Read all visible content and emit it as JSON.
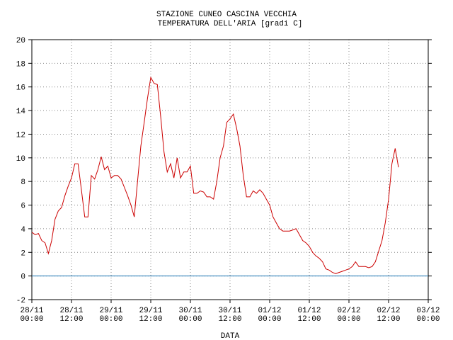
{
  "chart_data": {
    "type": "line",
    "title": "STAZIONE CUNEO CASCINA VECCHIA",
    "subtitle": "TEMPERATURA DELL'ARIA [gradi C]",
    "xlabel": "DATA",
    "x": [
      "28/11 00:00",
      "28/11 01:00",
      "28/11 02:00",
      "28/11 03:00",
      "28/11 04:00",
      "28/11 05:00",
      "28/11 06:00",
      "28/11 07:00",
      "28/11 08:00",
      "28/11 09:00",
      "28/11 10:00",
      "28/11 11:00",
      "28/11 12:00",
      "28/11 13:00",
      "28/11 14:00",
      "28/11 15:00",
      "28/11 16:00",
      "28/11 17:00",
      "28/11 18:00",
      "28/11 19:00",
      "28/11 20:00",
      "28/11 21:00",
      "28/11 22:00",
      "28/11 23:00",
      "29/11 00:00",
      "29/11 01:00",
      "29/11 02:00",
      "29/11 03:00",
      "29/11 04:00",
      "29/11 05:00",
      "29/11 06:00",
      "29/11 07:00",
      "29/11 08:00",
      "29/11 09:00",
      "29/11 10:00",
      "29/11 11:00",
      "29/11 12:00",
      "29/11 13:00",
      "29/11 14:00",
      "29/11 15:00",
      "29/11 16:00",
      "29/11 17:00",
      "29/11 18:00",
      "29/11 19:00",
      "29/11 20:00",
      "29/11 21:00",
      "29/11 22:00",
      "29/11 23:00",
      "30/11 00:00",
      "30/11 01:00",
      "30/11 02:00",
      "30/11 03:00",
      "30/11 04:00",
      "30/11 05:00",
      "30/11 06:00",
      "30/11 07:00",
      "30/11 08:00",
      "30/11 09:00",
      "30/11 10:00",
      "30/11 11:00",
      "30/11 12:00",
      "30/11 13:00",
      "30/11 14:00",
      "30/11 15:00",
      "30/11 16:00",
      "30/11 17:00",
      "30/11 18:00",
      "30/11 19:00",
      "30/11 20:00",
      "30/11 21:00",
      "30/11 22:00",
      "30/11 23:00",
      "01/12 00:00",
      "01/12 01:00",
      "01/12 02:00",
      "01/12 03:00",
      "01/12 04:00",
      "01/12 05:00",
      "01/12 06:00",
      "01/12 07:00",
      "01/12 08:00",
      "01/12 09:00",
      "01/12 10:00",
      "01/12 11:00",
      "01/12 12:00",
      "01/12 13:00",
      "01/12 14:00",
      "01/12 15:00",
      "01/12 16:00",
      "01/12 17:00",
      "01/12 18:00",
      "01/12 19:00",
      "01/12 20:00",
      "01/12 21:00",
      "01/12 22:00",
      "01/12 23:00",
      "02/12 00:00",
      "02/12 01:00",
      "02/12 02:00",
      "02/12 03:00",
      "02/12 04:00",
      "02/12 05:00",
      "02/12 06:00",
      "02/12 07:00",
      "02/12 08:00",
      "02/12 09:00",
      "02/12 10:00",
      "02/12 11:00",
      "02/12 12:00",
      "02/12 13:00",
      "02/12 14:00",
      "02/12 15:00"
    ],
    "series": [
      {
        "color": "#cc0000",
        "values": [
          3.7,
          3.5,
          3.6,
          3.0,
          2.8,
          1.9,
          3.0,
          4.8,
          5.5,
          5.8,
          6.8,
          7.6,
          8.3,
          9.5,
          9.5,
          7.3,
          5.0,
          5.0,
          8.5,
          8.2,
          9.0,
          10.1,
          9.0,
          9.3,
          8.3,
          8.5,
          8.5,
          8.2,
          7.5,
          6.8,
          6.0,
          5.0,
          8.0,
          11.0,
          13.0,
          15.0,
          16.8,
          16.3,
          16.2,
          13.5,
          10.5,
          8.8,
          9.5,
          8.3,
          10.0,
          8.3,
          8.8,
          8.8,
          9.3,
          7.0,
          7.0,
          7.2,
          7.1,
          6.7,
          6.7,
          6.5,
          8.0,
          10.0,
          11.0,
          13.0,
          13.3,
          13.7,
          12.5,
          11.0,
          8.5,
          6.7,
          6.7,
          7.2,
          7.0,
          7.3,
          7.0,
          6.5,
          6.0,
          5.0,
          4.5,
          4.0,
          3.8,
          3.8,
          3.8,
          3.9,
          4.0,
          3.5,
          3.0,
          2.8,
          2.5,
          2.0,
          1.7,
          1.5,
          1.2,
          0.6,
          0.5,
          0.3,
          0.2,
          0.3,
          0.4,
          0.5,
          0.6,
          0.8,
          1.2,
          0.8,
          0.8,
          0.8,
          0.7,
          0.8,
          1.2,
          2.1,
          3.0,
          4.5,
          6.5,
          9.5,
          10.8,
          9.2
        ]
      }
    ],
    "xlim": [
      "28/11 00:00",
      "03/12 00:00"
    ],
    "xticks": [
      "28/11 00:00",
      "28/11 12:00",
      "29/11 00:00",
      "29/11 12:00",
      "30/11 00:00",
      "30/11 12:00",
      "01/12 00:00",
      "01/12 12:00",
      "02/12 00:00",
      "02/12 12:00",
      "03/12 00:00"
    ],
    "ylim": [
      -2,
      20
    ],
    "yticks": [
      -2,
      0,
      2,
      4,
      6,
      8,
      10,
      12,
      14,
      16,
      18,
      20
    ],
    "grid": true,
    "reference_line": {
      "value": 0,
      "color": "#1f77b4"
    }
  }
}
